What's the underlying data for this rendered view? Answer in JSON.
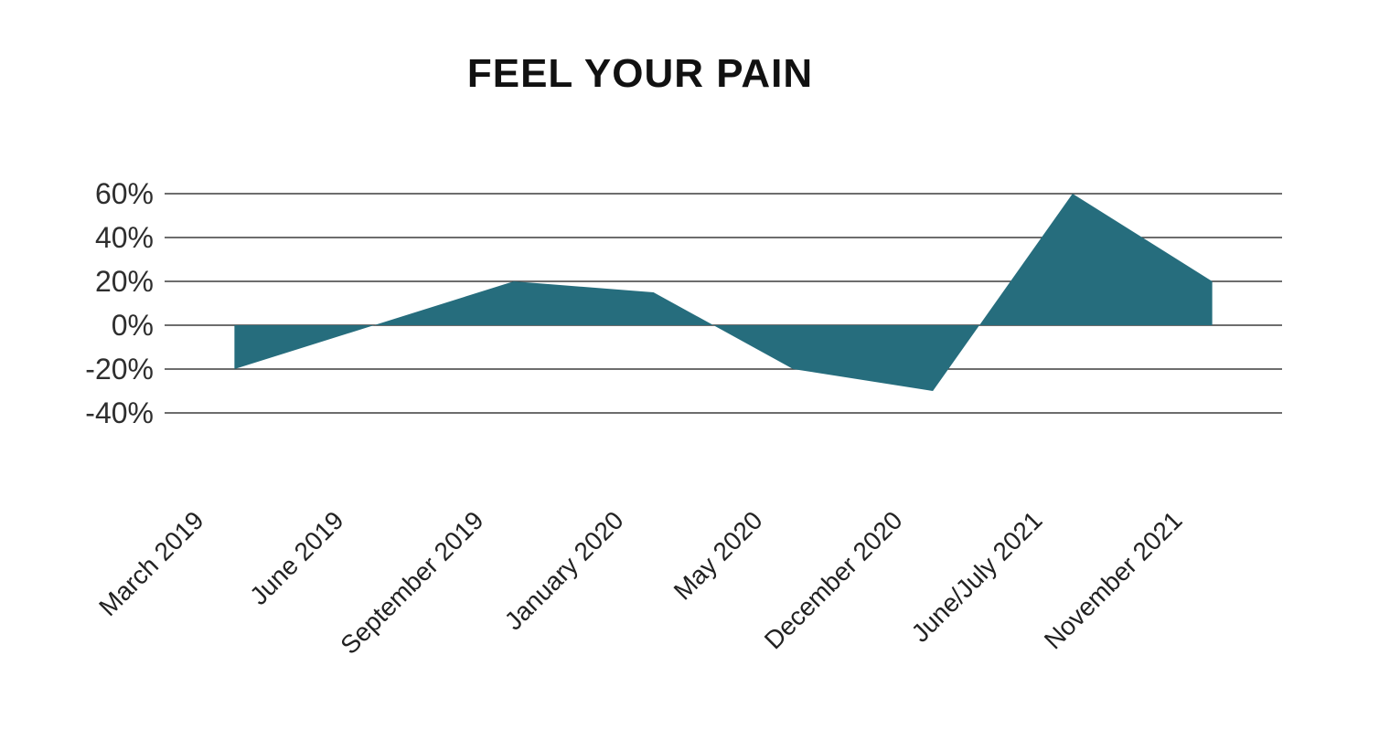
{
  "title": "FEEL YOUR PAIN",
  "colors": {
    "background": "#ffffff",
    "area_fill": "#266d7d",
    "gridline": "#3d3d3d",
    "title_text": "#111111",
    "y_axis_text": "#2e2e2e",
    "x_axis_text": "#222222"
  },
  "chart_data": {
    "type": "area",
    "title": "FEEL YOUR PAIN",
    "categories": [
      "March 2019",
      "June 2019",
      "September 2019",
      "January 2020",
      "May 2020",
      "December 2020",
      "June/July 2021",
      "November 2021"
    ],
    "values": [
      -20,
      0,
      20,
      15,
      -20,
      -30,
      60,
      20
    ],
    "unit": "%",
    "yticks": [
      60,
      40,
      20,
      0,
      -20,
      -40
    ],
    "ytick_labels": [
      "60%",
      "40%",
      "20%",
      "0%",
      "-20%",
      "-40%"
    ],
    "ylim": [
      -40,
      60
    ],
    "baseline": 0,
    "xlabel": "",
    "ylabel": "",
    "grid": true,
    "legend": false,
    "x_label_rotation_deg": -45,
    "fill_to_zero": true,
    "line_stroke": "none"
  }
}
